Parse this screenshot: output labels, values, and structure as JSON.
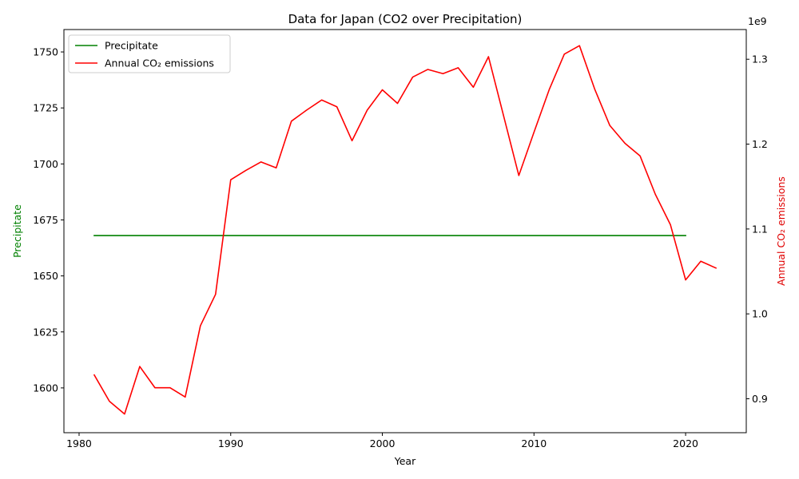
{
  "chart_data": {
    "type": "line",
    "title": "Data for Japan (CO2 over Precipitation)",
    "xlabel": "Year",
    "ylabel_left": "Precipitate",
    "ylabel_right": "Annual CO₂ emissions",
    "right_offset_text": "1e9",
    "xlim": [
      1979,
      2024
    ],
    "ylim_left": [
      1580,
      1760
    ],
    "ylim_right": [
      0.86,
      1.335
    ],
    "x_ticks": [
      1980,
      1990,
      2000,
      2010,
      2020
    ],
    "y_ticks_left": [
      1600,
      1625,
      1650,
      1675,
      1700,
      1725,
      1750
    ],
    "y_ticks_right": [
      0.9,
      1.0,
      1.1,
      1.2,
      1.3
    ],
    "grid": false,
    "legend_position": "top-left",
    "colors": {
      "left_axis": "#008000",
      "right_axis": "#e00000"
    },
    "series": [
      {
        "name": "Precipitate",
        "axis": "left",
        "color": "#008000",
        "x": [
          1981,
          2020
        ],
        "values": [
          1668,
          1668
        ]
      },
      {
        "name": "Annual CO₂ emissions",
        "axis": "right",
        "color": "#ff0000",
        "x": [
          1981,
          1982,
          1983,
          1984,
          1985,
          1986,
          1987,
          1988,
          1989,
          1990,
          1991,
          1992,
          1993,
          1994,
          1995,
          1996,
          1997,
          1998,
          1999,
          2000,
          2001,
          2002,
          2003,
          2004,
          2005,
          2006,
          2007,
          2008,
          2009,
          2010,
          2011,
          2012,
          2013,
          2014,
          2015,
          2016,
          2017,
          2018,
          2019,
          2020,
          2021,
          2022
        ],
        "values": [
          0.928,
          0.897,
          0.882,
          0.938,
          0.913,
          0.913,
          0.902,
          0.986,
          1.023,
          1.158,
          1.169,
          1.179,
          1.172,
          1.227,
          1.24,
          1.252,
          1.244,
          1.204,
          1.24,
          1.264,
          1.248,
          1.279,
          1.288,
          1.283,
          1.29,
          1.267,
          1.303,
          1.233,
          1.163,
          1.214,
          1.264,
          1.306,
          1.316,
          1.265,
          1.222,
          1.201,
          1.186,
          1.141,
          1.105,
          1.04,
          1.062,
          1.054
        ]
      }
    ]
  }
}
